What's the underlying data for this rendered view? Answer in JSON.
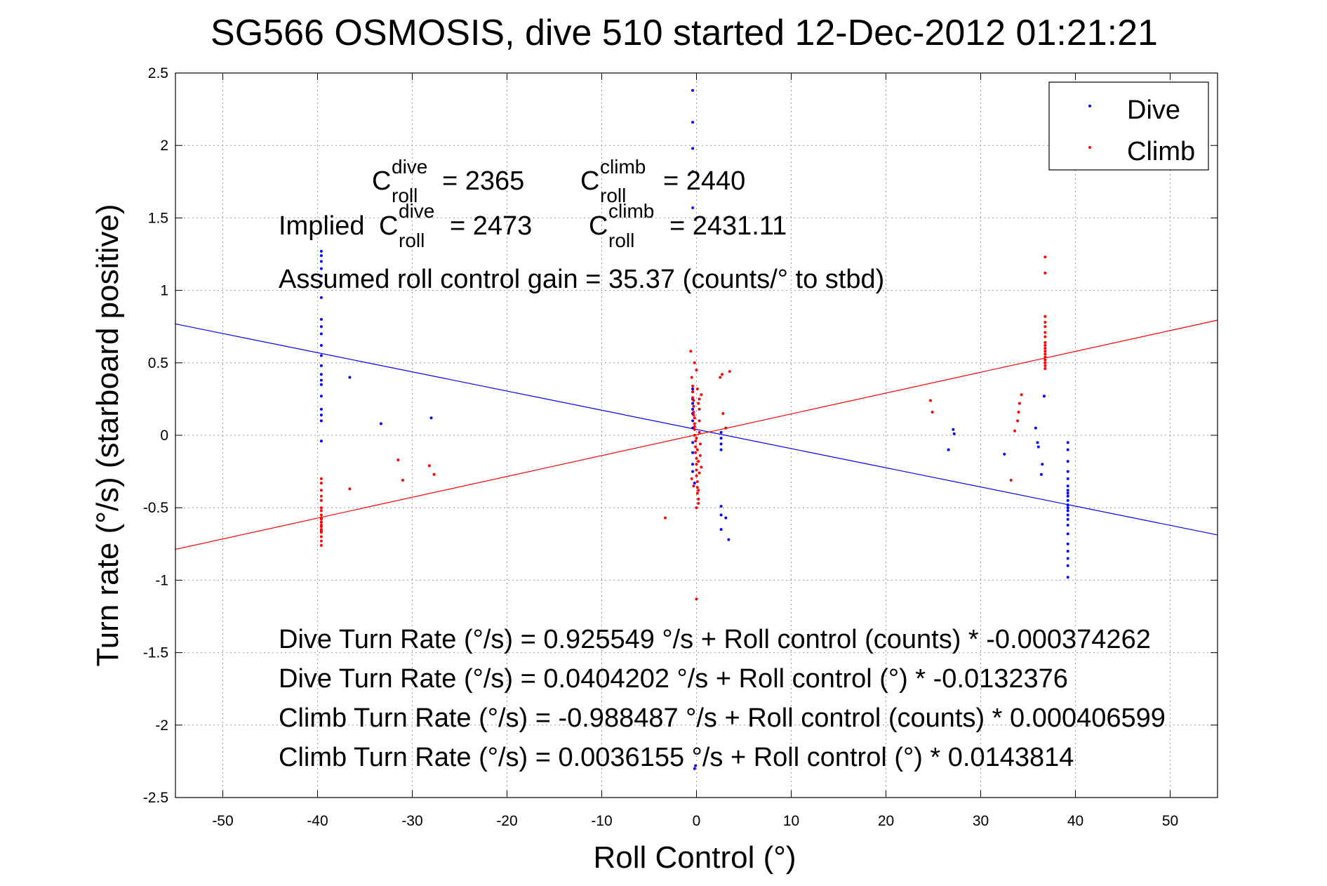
{
  "chart_data": {
    "type": "scatter",
    "title": "SG566 OSMOSIS, dive 510 started 12-Dec-2012 01:21:21",
    "xlabel": "Roll Control (°)",
    "ylabel": "Turn rate (°/s)  (starboard positive)",
    "xlim": [
      -55,
      55
    ],
    "ylim": [
      -2.5,
      2.5
    ],
    "x_ticks": [
      -50,
      -40,
      -30,
      -20,
      -10,
      0,
      10,
      20,
      30,
      40,
      50
    ],
    "y_ticks": [
      2.5,
      2,
      1.5,
      1,
      0.5,
      0,
      -0.5,
      -1,
      -1.5,
      -2,
      -2.5
    ],
    "x_tick_labels": [
      "-50",
      "-40",
      "-30",
      "-20",
      "-10",
      "0",
      "10",
      "20",
      "30",
      "40",
      "50"
    ],
    "y_tick_labels": [
      "2.5",
      "2",
      "1.5",
      "1",
      "0.5",
      "0",
      "-0.5",
      "-1",
      "-1.5",
      "-2",
      "-2.5"
    ],
    "grid": true,
    "legend": {
      "placement": "top-right",
      "entries": [
        "Dive",
        "Climb"
      ]
    },
    "colors": {
      "dive": "#0000ff",
      "climb": "#ff0000"
    },
    "series": [
      {
        "name": "Dive",
        "color": "#0000ff",
        "x": [
          -39.6,
          -39.6,
          -39.6,
          -39.6,
          -39.6,
          -39.6,
          -39.6,
          -39.6,
          -39.6,
          -39.6,
          -39.6,
          -39.6,
          -39.6,
          -39.6,
          -39.6,
          -39.6,
          -39.6,
          -39.6,
          -39.6,
          -39.6,
          -39.6,
          -36.6,
          -33.3,
          -28,
          -0.4,
          -0.4,
          -0.4,
          -0.4,
          -0.4,
          -0.4,
          -0.4,
          -0.4,
          -0.4,
          -0.4,
          -0.4,
          -0.4,
          -0.4,
          -0.4,
          -0.4,
          -0.4,
          -0.4,
          -0.2,
          -0.2,
          -0.1,
          2.6,
          2.6,
          2.6,
          2.6,
          2.6,
          2.6,
          2.6,
          3.1,
          3.4,
          26.6,
          27.1,
          27.2,
          32.5,
          35.8,
          36,
          36.1,
          36.4,
          36.5,
          36.7,
          39.2,
          39.2,
          39.2,
          39.2,
          39.2,
          39.2,
          39.2,
          39.2,
          39.2,
          39.2,
          39.2,
          39.2,
          39.2,
          39.2,
          39.2,
          39.2,
          39.2,
          39.2,
          39.2,
          39.2,
          39.2,
          39.2,
          39.2
        ],
        "y": [
          1.27,
          1.24,
          1.2,
          1.15,
          1.1,
          0.95,
          0.8,
          0.75,
          0.7,
          0.62,
          0.55,
          0.48,
          0.42,
          0.38,
          0.35,
          0.27,
          0.18,
          0.14,
          0.1,
          -0.04,
          1.05,
          0.4,
          0.08,
          0.12,
          2.38,
          2.16,
          1.98,
          1.82,
          1.57,
          0.32,
          0.3,
          0.25,
          0.22,
          0.18,
          0.15,
          0.1,
          0.05,
          -0.05,
          -0.12,
          -0.2,
          -0.25,
          -0.33,
          -2.3,
          -2.28,
          0.02,
          -0.02,
          -0.06,
          -0.1,
          -0.49,
          -0.55,
          -0.65,
          -0.57,
          -0.72,
          -0.1,
          0.04,
          0.01,
          -0.13,
          0.05,
          -0.05,
          -0.08,
          -0.27,
          -0.2,
          0.27,
          -0.05,
          -0.1,
          -0.18,
          -0.25,
          -0.3,
          -0.35,
          -0.38,
          -0.4,
          -0.42,
          -0.45,
          -0.48,
          -0.5,
          -0.52,
          -0.55,
          -0.58,
          -0.62,
          -0.68,
          -0.75,
          -0.8,
          -0.85,
          -0.9,
          -0.98,
          -0.5
        ]
      },
      {
        "name": "Climb",
        "color": "#ff0000",
        "x": [
          -39.6,
          -39.6,
          -39.6,
          -39.6,
          -39.6,
          -39.6,
          -39.6,
          -39.6,
          -39.6,
          -39.6,
          -39.6,
          -39.6,
          -39.6,
          -39.6,
          -39.6,
          -39.6,
          -39.6,
          -39.6,
          -39.6,
          -39.6,
          -36.6,
          -31.5,
          -31,
          -28.2,
          -27.7,
          -0.6,
          -0.5,
          -0.4,
          -0.4,
          -0.3,
          -0.3,
          -0.3,
          -0.2,
          -0.2,
          -0.2,
          -0.2,
          -0.1,
          -0.1,
          -0.1,
          0,
          0,
          0,
          0,
          0.1,
          0.1,
          0.1,
          0.2,
          0.2,
          0.2,
          0.3,
          0.3,
          0.3,
          0.4,
          0.4,
          0.5,
          -0.5,
          -0.3,
          -0.2,
          0,
          0.1,
          0.2,
          0.3,
          0.5,
          -0.2,
          0,
          0.3,
          -0.3,
          0,
          0.2,
          -0.4,
          0.1,
          0,
          -3.3,
          2.5,
          2.7,
          2.8,
          3.1,
          3.5,
          24.7,
          24.9,
          33.2,
          33.6,
          33.9,
          34,
          34.1,
          34.3,
          36.8,
          36.8,
          36.8,
          36.8,
          36.8,
          36.8,
          36.8,
          36.8,
          36.8,
          36.8,
          36.8,
          36.8,
          36.8,
          36.8,
          36.8,
          36.8,
          36.8
        ],
        "y": [
          -0.3,
          -0.33,
          -0.38,
          -0.45,
          -0.5,
          -0.55,
          -0.57,
          -0.58,
          -0.6,
          -0.62,
          -0.63,
          -0.65,
          -0.67,
          -0.7,
          -0.73,
          -0.76,
          -0.52,
          -0.42,
          -0.6,
          -0.66,
          -0.37,
          -0.17,
          -0.31,
          -0.21,
          -0.27,
          0.58,
          0.4,
          0.3,
          0.26,
          0.24,
          0.2,
          0.16,
          0.12,
          0.08,
          0.04,
          0,
          -0.04,
          -0.08,
          -0.12,
          -0.16,
          -0.2,
          -0.24,
          -0.28,
          -0.32,
          -0.36,
          -0.4,
          -0.44,
          -0.47,
          0.22,
          0.18,
          0.1,
          0.02,
          -0.06,
          -0.14,
          -0.22,
          -0.3,
          0.14,
          0.06,
          -0.02,
          -0.1,
          -0.18,
          -0.26,
          0.28,
          0.5,
          -1.13,
          0.25,
          -0.35,
          0.45,
          -0.38,
          0.34,
          0.32,
          -0.5,
          -0.57,
          0.4,
          0.42,
          0.15,
          0.05,
          0.44,
          0.24,
          0.16,
          -0.31,
          0.03,
          0.1,
          0.16,
          0.22,
          0.28,
          1.23,
          1.12,
          0.82,
          0.78,
          0.75,
          0.71,
          0.68,
          0.64,
          0.62,
          0.6,
          0.58,
          0.56,
          0.54,
          0.52,
          0.5,
          0.48,
          0.46
        ]
      }
    ],
    "fit_lines": [
      {
        "name": "Dive fit",
        "color": "#0000ff",
        "intercept": 0.0404202,
        "slope": -0.0132376
      },
      {
        "name": "Climb fit",
        "color": "#ff0000",
        "intercept": 0.0036155,
        "slope": 0.0143814
      }
    ],
    "annotations": {
      "c_roll_dive": {
        "prefix": "C",
        "sup": "dive",
        "sub": "roll",
        "value": "= 2365"
      },
      "c_roll_climb": {
        "prefix": "C",
        "sup": "climb",
        "sub": "roll",
        "value": "= 2440"
      },
      "implied_label": "Implied",
      "implied_dive": {
        "prefix": "C",
        "sup": "dive",
        "sub": "roll",
        "value": "= 2473"
      },
      "implied_climb": {
        "prefix": "C",
        "sup": "climb",
        "sub": "roll",
        "value": "= 2431.11"
      },
      "gain": "Assumed roll control gain = 35.37 (counts/° to stbd)",
      "equations": [
        "Dive Turn Rate (°/s) = 0.925549 °/s + Roll control (counts) * -0.000374262",
        "Dive Turn Rate (°/s) = 0.0404202 °/s + Roll control (°) * -0.0132376",
        "Climb Turn Rate (°/s) = -0.988487 °/s + Roll control (counts) * 0.000406599",
        "Climb Turn Rate (°/s) = 0.0036155 °/s + Roll control (°) * 0.0143814"
      ]
    }
  }
}
